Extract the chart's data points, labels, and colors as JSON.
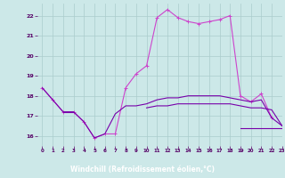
{
  "xlabel": "Windchill (Refroidissement éolien,°C)",
  "xlim": [
    -0.5,
    23
  ],
  "ylim": [
    15.5,
    22.6
  ],
  "yticks": [
    16,
    17,
    18,
    19,
    20,
    21,
    22
  ],
  "xticks": [
    0,
    1,
    2,
    3,
    4,
    5,
    6,
    7,
    8,
    9,
    10,
    11,
    12,
    13,
    14,
    15,
    16,
    17,
    18,
    19,
    20,
    21,
    22,
    23
  ],
  "bg_color": "#cce8e8",
  "xlabel_bg": "#440055",
  "grid_color": "#aacccc",
  "line_color1": "#cc44cc",
  "line_color2": "#7700aa",
  "line_color3": "#7700aa",
  "line_color4": "#7700aa",
  "hours": [
    0,
    1,
    2,
    3,
    4,
    5,
    6,
    7,
    8,
    9,
    10,
    11,
    12,
    13,
    14,
    15,
    16,
    17,
    18,
    19,
    20,
    21,
    22,
    23
  ],
  "curve1": [
    18.4,
    17.8,
    17.2,
    17.2,
    16.7,
    15.9,
    16.1,
    16.1,
    18.4,
    19.1,
    19.5,
    21.9,
    22.3,
    21.9,
    21.7,
    21.6,
    21.7,
    21.8,
    22.0,
    18.0,
    17.7,
    18.1,
    16.9,
    null
  ],
  "curve2": [
    18.4,
    17.8,
    17.2,
    17.2,
    16.7,
    15.9,
    16.1,
    17.1,
    17.5,
    17.5,
    17.6,
    17.8,
    17.9,
    17.9,
    18.0,
    18.0,
    18.0,
    18.0,
    17.9,
    17.8,
    17.7,
    17.8,
    16.9,
    16.5
  ],
  "curve3": [
    null,
    null,
    17.2,
    17.2,
    null,
    null,
    null,
    null,
    null,
    null,
    17.4,
    17.5,
    17.5,
    17.6,
    17.6,
    17.6,
    17.6,
    17.6,
    17.6,
    17.5,
    17.4,
    17.4,
    17.3,
    16.5
  ],
  "curve4": [
    null,
    null,
    null,
    null,
    null,
    null,
    null,
    null,
    null,
    null,
    null,
    null,
    null,
    null,
    null,
    null,
    null,
    null,
    null,
    16.4,
    16.4,
    16.4,
    16.4,
    16.4
  ]
}
